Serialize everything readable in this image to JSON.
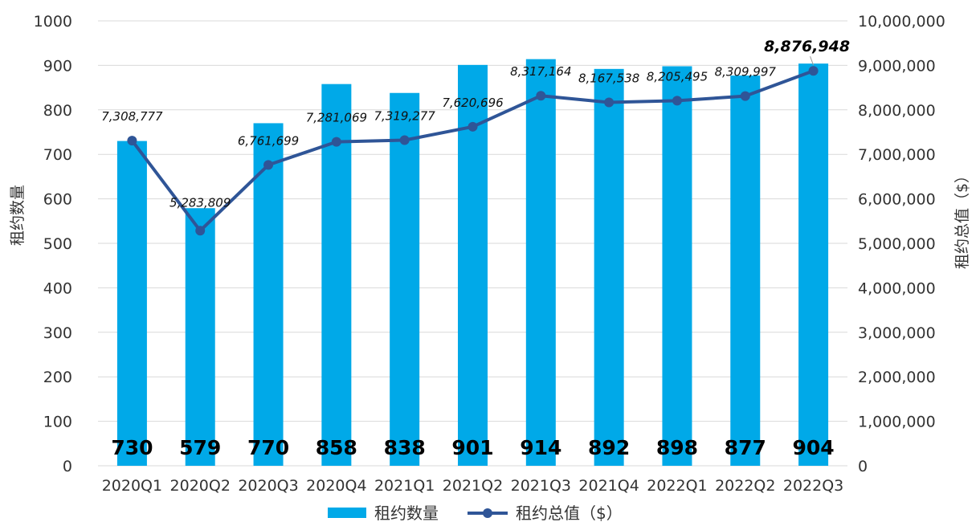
{
  "chart_data": {
    "type": "bar",
    "categories": [
      "2020Q1",
      "2020Q2",
      "2020Q3",
      "2020Q4",
      "2021Q1",
      "2021Q2",
      "2021Q3",
      "2021Q4",
      "2022Q1",
      "2022Q2",
      "2022Q3"
    ],
    "series": [
      {
        "name": "租约数量",
        "type": "bar",
        "axis": "left",
        "color": "#00A9E8",
        "values": [
          730,
          579,
          770,
          858,
          838,
          901,
          914,
          892,
          898,
          877,
          904
        ],
        "labels": [
          "730",
          "579",
          "770",
          "858",
          "838",
          "901",
          "914",
          "892",
          "898",
          "877",
          "904"
        ]
      },
      {
        "name": "租约总值（$）",
        "type": "line",
        "axis": "right",
        "color": "#2F5597",
        "values": [
          7308777,
          5283809,
          6761699,
          7281069,
          7319277,
          7620696,
          8317164,
          8167538,
          8205495,
          8309997,
          8876948
        ],
        "labels": [
          "7,308,777",
          "5,283,809",
          "6,761,699",
          "7,281,069",
          "7,319,277",
          "7,620,696",
          "8,317,164",
          "8,167,538",
          "8,205,495",
          "8,309,997",
          "8,876,948"
        ]
      }
    ],
    "ylabel": "租约数量",
    "y2label": "租约总值（$）",
    "ylim": [
      0,
      1000
    ],
    "y2lim": [
      0,
      10000000
    ],
    "yticks": [
      "0",
      "100",
      "200",
      "300",
      "400",
      "500",
      "600",
      "700",
      "800",
      "900",
      "1000"
    ],
    "y2ticks": [
      "0",
      "1,000,000",
      "2,000,000",
      "3,000,000",
      "4,000,000",
      "5,000,000",
      "6,000,000",
      "7,000,000",
      "8,000,000",
      "9,000,000",
      "10,000,000"
    ],
    "grid": true,
    "legend": "bottom-center"
  }
}
